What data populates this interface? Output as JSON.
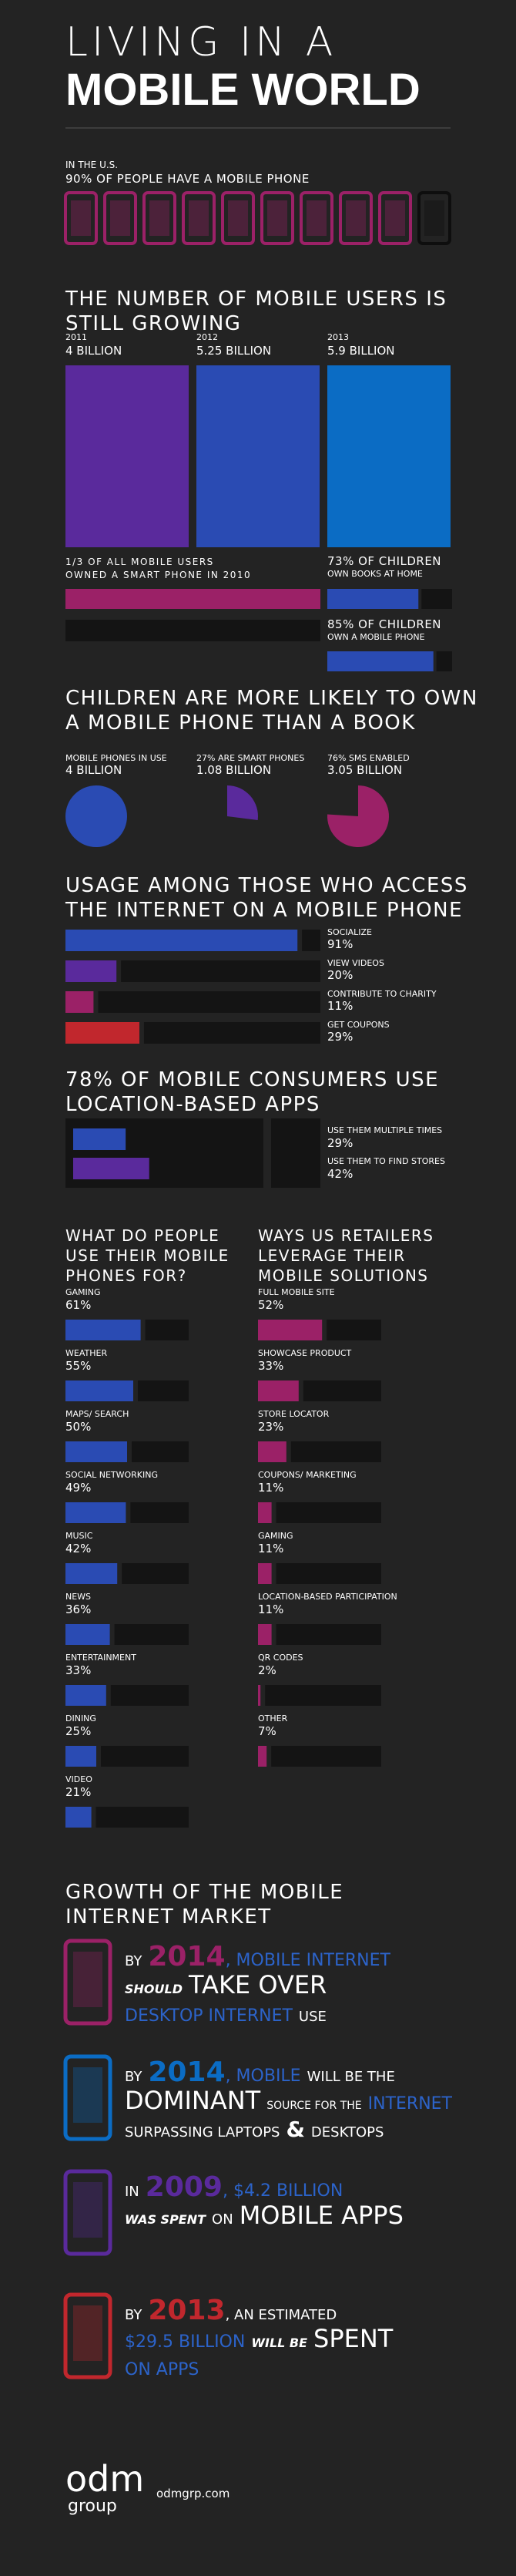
{
  "header": {
    "title_top": "LIVING IN A",
    "title_bottom": "MOBILE WORLD"
  },
  "phones": {
    "label": "IN THE U.S.",
    "stat": "90% OF PEOPLE HAVE A MOBILE PHONE",
    "color": "#9b2167"
  },
  "users": {
    "title_lines": [
      "THE NUMBER OF MOBILE USERS IS",
      "STILL GROWING"
    ],
    "items": [
      {
        "year": "2011",
        "value": "4 BILLION",
        "color": "#5a2a9c"
      },
      {
        "year": "2012",
        "value": "5.25 BILLION",
        "color": "#2a4bb3"
      },
      {
        "year": "2013",
        "value": "5.9 BILLION",
        "color": "#0b6cc4"
      }
    ]
  },
  "smartphones": {
    "label_lines": [
      "1/3 OF ALL MOBILE USERS",
      "OWNED A SMART PHONE IN 2010"
    ],
    "color": "#9b2167",
    "children": [
      {
        "stat": "73% OF CHILDREN",
        "label": "OWN BOOKS AT HOME",
        "color": "#2a4bb3"
      },
      {
        "stat": "85% OF CHILDREN",
        "label": "OWN A MOBILE PHONE",
        "color": "#2a4bb3"
      }
    ]
  },
  "children": {
    "title_lines": [
      "CHILDREN ARE MORE LIKELY TO OWN",
      "A MOBILE PHONE THAN A BOOK"
    ],
    "items": [
      {
        "label": "MOBILE PHONES IN USE",
        "value": "4 BILLION",
        "color": "#2a4bb3"
      },
      {
        "label": "27% ARE SMART PHONES",
        "value": "1.08 BILLION",
        "color": "#5a2a9c"
      },
      {
        "label": "76% SMS ENABLED",
        "value": "3.05 BILLION",
        "color": "#9b2167"
      }
    ]
  },
  "usage": {
    "title_lines": [
      "USAGE AMONG THOSE WHO ACCESS",
      "THE INTERNET ON A MOBILE PHONE"
    ],
    "items": [
      {
        "label": "SOCIALIZE",
        "value": "91%",
        "color": "#2a4bb3"
      },
      {
        "label": "VIEW VIDEOS",
        "value": "20%",
        "color": "#5a2a9c"
      },
      {
        "label": "CONTRIBUTE TO CHARITY",
        "value": "11%",
        "color": "#9b2167"
      },
      {
        "label": "GET COUPONS",
        "value": "29%",
        "color": "#c1272d"
      }
    ]
  },
  "location": {
    "title_lines": [
      "78% OF MOBILE CONSUMERS USE",
      "LOCATION-BASED APPS"
    ],
    "items": [
      {
        "label": "USE THEM MULTIPLE TIMES",
        "value": "29%",
        "color": "#2a4bb3"
      },
      {
        "label": "USE THEM TO FIND STORES",
        "value": "42%",
        "color": "#5a2a9c"
      }
    ]
  },
  "phone_uses": {
    "title_lines": [
      "WHAT DO PEOPLE",
      "USE THEIR MOBILE",
      "PHONES FOR?"
    ],
    "color": "#2a4bb3",
    "items": [
      {
        "label": "GAMING",
        "value": "61%"
      },
      {
        "label": "WEATHER",
        "value": "55%"
      },
      {
        "label": "MAPS/ SEARCH",
        "value": "50%"
      },
      {
        "label": "SOCIAL NETWORKING",
        "value": "49%"
      },
      {
        "label": "MUSIC",
        "value": "42%"
      },
      {
        "label": "NEWS",
        "value": "36%"
      },
      {
        "label": "ENTERTAINMENT",
        "value": "33%"
      },
      {
        "label": "DINING",
        "value": "25%"
      },
      {
        "label": "VIDEO",
        "value": "21%"
      }
    ]
  },
  "retailers": {
    "title_lines": [
      "WAYS US RETAILERS",
      "LEVERAGE THEIR",
      "MOBILE SOLUTIONS"
    ],
    "color": "#9b2167",
    "items": [
      {
        "label": "FULL MOBILE SITE",
        "value": "52%"
      },
      {
        "label": "SHOWCASE PRODUCT",
        "value": "33%"
      },
      {
        "label": "STORE LOCATOR",
        "value": "23%"
      },
      {
        "label": "COUPONS/ MARKETING",
        "value": "11%"
      },
      {
        "label": "GAMING",
        "value": "11%"
      },
      {
        "label": "LOCATION-BASED PARTICIPATION",
        "value": "11%"
      },
      {
        "label": "QR CODES",
        "value": "2%"
      },
      {
        "label": "OTHER",
        "value": "7%"
      }
    ]
  },
  "growth": {
    "title_lines": [
      "GROWTH OF THE MOBILE",
      "INTERNET MARKET"
    ],
    "items": [
      {
        "color": "#9b2167",
        "lines": [
          [
            {
              "text": "BY",
              "style": "sm"
            },
            {
              "text": "2014",
              "style": "yr"
            },
            {
              "text": ", MOBILE INTERNET",
              "style": "ac"
            }
          ],
          [
            {
              "text": "SHOULD",
              "style": "bi"
            },
            {
              "text": "TAKE OVER",
              "style": "big"
            }
          ],
          [
            {
              "text": "DESKTOP INTERNET",
              "style": "ac"
            },
            {
              "text": "USE",
              "style": "sm"
            }
          ]
        ]
      },
      {
        "color": "#0b6cc4",
        "lines": [
          [
            {
              "text": "BY",
              "style": "sm"
            },
            {
              "text": "2014",
              "style": "yr"
            },
            {
              "text": ", MOBILE",
              "style": "ac"
            },
            {
              "text": "WILL BE THE",
              "style": "sm"
            }
          ],
          [
            {
              "text": "DOMINANT",
              "style": "big"
            },
            {
              "text": "SOURCE FOR THE",
              "style": "tiny"
            },
            {
              "text": "INTERNET",
              "style": "ac"
            }
          ],
          [
            {
              "text": "SURPASSING LAPTOPS",
              "style": "sm"
            },
            {
              "text": "&",
              "style": "amp"
            },
            {
              "text": "DESKTOPS",
              "style": "sm"
            }
          ]
        ]
      },
      {
        "color": "#5a2a9c",
        "lines": [
          [
            {
              "text": "IN",
              "style": "sm"
            },
            {
              "text": "2009",
              "style": "yr"
            },
            {
              "text": ", $4.2 BILLION",
              "style": "ac"
            }
          ],
          [
            {
              "text": "WAS SPENT",
              "style": "bi"
            },
            {
              "text": "ON",
              "style": "sm"
            },
            {
              "text": "MOBILE APPS",
              "style": "big"
            }
          ]
        ]
      },
      {
        "color": "#c1272d",
        "lines": [
          [
            {
              "text": "BY",
              "style": "sm"
            },
            {
              "text": "2013",
              "style": "yr"
            },
            {
              "text": ", AN ESTIMATED",
              "style": "sm"
            }
          ],
          [
            {
              "text": "$29.5 BILLION",
              "style": "ac"
            },
            {
              "text": "WILL BE",
              "style": "bi"
            },
            {
              "text": "SPENT",
              "style": "big"
            }
          ],
          [
            {
              "text": "ON APPS",
              "style": "ac"
            }
          ]
        ]
      }
    ]
  },
  "footer": {
    "logo_top": "odm",
    "logo_bottom": "group",
    "url": "odmgrp.com"
  }
}
